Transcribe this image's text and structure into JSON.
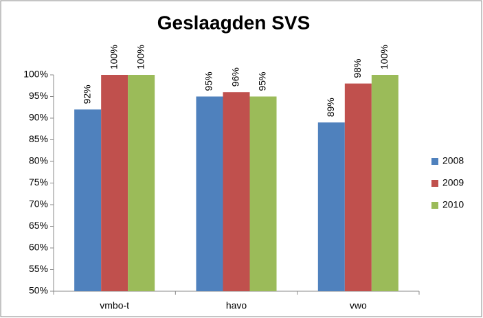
{
  "chart_data": {
    "type": "bar",
    "title": "Geslaagden SVS",
    "categories": [
      "vmbo-t",
      "havo",
      "vwo"
    ],
    "series": [
      {
        "name": "2008",
        "color": "#4f81bd",
        "values": [
          92,
          95,
          89
        ],
        "value_labels": [
          "92%",
          "95%",
          "89%"
        ]
      },
      {
        "name": "2009",
        "color": "#c0504d",
        "values": [
          100,
          96,
          98
        ],
        "value_labels": [
          "100%",
          "96%",
          "98%"
        ]
      },
      {
        "name": "2010",
        "color": "#9bbb59",
        "values": [
          100,
          95,
          100
        ],
        "value_labels": [
          "100%",
          "95%",
          "100%"
        ]
      }
    ],
    "ylim": [
      50,
      100
    ],
    "yticks": [
      {
        "value": 50,
        "label": "50%"
      },
      {
        "value": 55,
        "label": "55%"
      },
      {
        "value": 60,
        "label": "60%"
      },
      {
        "value": 65,
        "label": "65%"
      },
      {
        "value": 70,
        "label": "70%"
      },
      {
        "value": 75,
        "label": "75%"
      },
      {
        "value": 80,
        "label": "80%"
      },
      {
        "value": 85,
        "label": "85%"
      },
      {
        "value": 90,
        "label": "90%"
      },
      {
        "value": 95,
        "label": "95%"
      },
      {
        "value": 100,
        "label": "100%"
      }
    ],
    "grid": false,
    "legend": "right"
  }
}
